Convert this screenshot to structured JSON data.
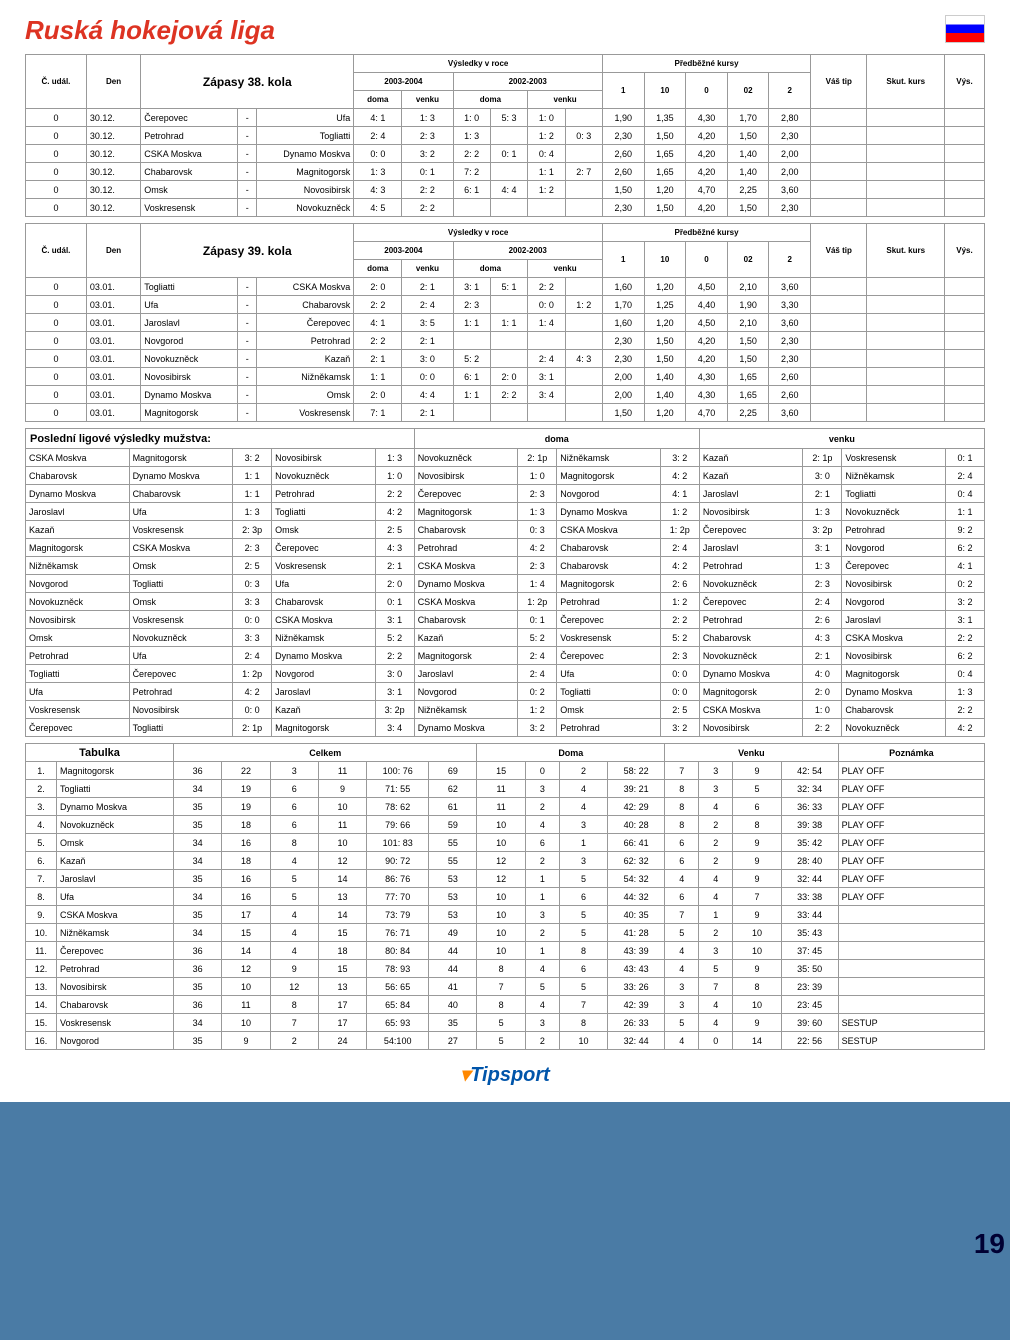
{
  "title": "Ruská hokejová liga",
  "page_number": "19",
  "round38": {
    "header": {
      "c": "Č. udál.",
      "den": "Den",
      "zapasy": "Zápasy 38. kola",
      "results": "Výsledky v roce",
      "s03": "2003-2004",
      "s02": "2002-2003",
      "doma": "doma",
      "venku": "venku",
      "odds": "Předběžné kursy",
      "o1": "1",
      "o10": "10",
      "o0": "0",
      "o02": "02",
      "o2": "2",
      "tip": "Váš tip",
      "skut": "Skut. kurs",
      "vys": "Výs."
    },
    "rows": [
      [
        "0",
        "30.12.",
        "Čerepovec",
        "-",
        "Ufa",
        "4: 1",
        "1: 3",
        "1: 0",
        "5: 3",
        "1: 0",
        "",
        "1,90",
        "1,35",
        "4,30",
        "1,70",
        "2,80"
      ],
      [
        "0",
        "30.12.",
        "Petrohrad",
        "-",
        "Togliatti",
        "2: 4",
        "2: 3",
        "1: 3",
        "",
        "1: 2",
        "0: 3",
        "2,30",
        "1,50",
        "4,20",
        "1,50",
        "2,30"
      ],
      [
        "0",
        "30.12.",
        "CSKA Moskva",
        "-",
        "Dynamo Moskva",
        "0: 0",
        "3: 2",
        "2: 2",
        "0: 1",
        "0: 4",
        "",
        "2,60",
        "1,65",
        "4,20",
        "1,40",
        "2,00"
      ],
      [
        "0",
        "30.12.",
        "Chabarovsk",
        "-",
        "Magnitogorsk",
        "1: 3",
        "0: 1",
        "7: 2",
        "",
        "1: 1",
        "2: 7",
        "2,60",
        "1,65",
        "4,20",
        "1,40",
        "2,00"
      ],
      [
        "0",
        "30.12.",
        "Omsk",
        "-",
        "Novosibirsk",
        "4: 3",
        "2: 2",
        "6: 1",
        "4: 4",
        "1: 2",
        "",
        "1,50",
        "1,20",
        "4,70",
        "2,25",
        "3,60"
      ],
      [
        "0",
        "30.12.",
        "Voskresensk",
        "-",
        "Novokuzněck",
        "4: 5",
        "2: 2",
        "",
        "",
        "",
        "",
        "2,30",
        "1,50",
        "4,20",
        "1,50",
        "2,30"
      ]
    ]
  },
  "round39": {
    "header": {
      "zapasy": "Zápasy 39. kola"
    },
    "rows": [
      [
        "0",
        "03.01.",
        "Togliatti",
        "-",
        "CSKA Moskva",
        "2: 0",
        "2: 1",
        "3: 1",
        "5: 1",
        "2: 2",
        "",
        "1,60",
        "1,20",
        "4,50",
        "2,10",
        "3,60"
      ],
      [
        "0",
        "03.01.",
        "Ufa",
        "-",
        "Chabarovsk",
        "2: 2",
        "2: 4",
        "2: 3",
        "",
        "0: 0",
        "1: 2",
        "1,70",
        "1,25",
        "4,40",
        "1,90",
        "3,30"
      ],
      [
        "0",
        "03.01.",
        "Jaroslavl",
        "-",
        "Čerepovec",
        "4: 1",
        "3: 5",
        "1: 1",
        "1: 1",
        "1: 4",
        "",
        "1,60",
        "1,20",
        "4,50",
        "2,10",
        "3,60"
      ],
      [
        "0",
        "03.01.",
        "Novgorod",
        "-",
        "Petrohrad",
        "2: 2",
        "2: 1",
        "",
        "",
        "",
        "",
        "2,30",
        "1,50",
        "4,20",
        "1,50",
        "2,30"
      ],
      [
        "0",
        "03.01.",
        "Novokuzněck",
        "-",
        "Kazaň",
        "2: 1",
        "3: 0",
        "5: 2",
        "",
        "2: 4",
        "4: 3",
        "2,30",
        "1,50",
        "4,20",
        "1,50",
        "2,30"
      ],
      [
        "0",
        "03.01.",
        "Novosibirsk",
        "-",
        "Nižněkamsk",
        "1: 1",
        "0: 0",
        "6: 1",
        "2: 0",
        "3: 1",
        "",
        "2,00",
        "1,40",
        "4,30",
        "1,65",
        "2,60"
      ],
      [
        "0",
        "03.01.",
        "Dynamo Moskva",
        "-",
        "Omsk",
        "2: 0",
        "4: 4",
        "1: 1",
        "2: 2",
        "3: 4",
        "",
        "2,00",
        "1,40",
        "4,30",
        "1,65",
        "2,60"
      ],
      [
        "0",
        "03.01.",
        "Magnitogorsk",
        "-",
        "Voskresensk",
        "7: 1",
        "2: 1",
        "",
        "",
        "",
        "",
        "1,50",
        "1,20",
        "4,70",
        "2,25",
        "3,60"
      ]
    ]
  },
  "last": {
    "title": "Poslední ligové výsledky mužstva:",
    "doma": "doma",
    "venku": "venku",
    "rows": [
      [
        "CSKA Moskva",
        "Magnitogorsk",
        "3: 2",
        "Novosibirsk",
        "1: 3",
        "Novokuzněck",
        "2: 1p",
        "Nižněkamsk",
        "3: 2",
        "Kazaň",
        "2: 1p",
        "Voskresensk",
        "0: 1"
      ],
      [
        "Chabarovsk",
        "Dynamo Moskva",
        "1: 1",
        "Novokuzněck",
        "1: 0",
        "Novosibirsk",
        "1: 0",
        "Magnitogorsk",
        "4: 2",
        "Kazaň",
        "3: 0",
        "Nižněkamsk",
        "2: 4"
      ],
      [
        "Dynamo Moskva",
        "Chabarovsk",
        "1: 1",
        "Petrohrad",
        "2: 2",
        "Čerepovec",
        "2: 3",
        "Novgorod",
        "4: 1",
        "Jaroslavl",
        "2: 1",
        "Togliatti",
        "0: 4"
      ],
      [
        "Jaroslavl",
        "Ufa",
        "1: 3",
        "Togliatti",
        "4: 2",
        "Magnitogorsk",
        "1: 3",
        "Dynamo Moskva",
        "1: 2",
        "Novosibirsk",
        "1: 3",
        "Novokuzněck",
        "1: 1"
      ],
      [
        "Kazaň",
        "Voskresensk",
        "2: 3p",
        "Omsk",
        "2: 5",
        "Chabarovsk",
        "0: 3",
        "CSKA Moskva",
        "1: 2p",
        "Čerepovec",
        "3: 2p",
        "Petrohrad",
        "9: 2"
      ],
      [
        "Magnitogorsk",
        "CSKA Moskva",
        "2: 3",
        "Čerepovec",
        "4: 3",
        "Petrohrad",
        "4: 2",
        "Chabarovsk",
        "2: 4",
        "Jaroslavl",
        "3: 1",
        "Novgorod",
        "6: 2"
      ],
      [
        "Nižněkamsk",
        "Omsk",
        "2: 5",
        "Voskresensk",
        "2: 1",
        "CSKA Moskva",
        "2: 3",
        "Chabarovsk",
        "4: 2",
        "Petrohrad",
        "1: 3",
        "Čerepovec",
        "4: 1"
      ],
      [
        "Novgorod",
        "Togliatti",
        "0: 3",
        "Ufa",
        "2: 0",
        "Dynamo Moskva",
        "1: 4",
        "Magnitogorsk",
        "2: 6",
        "Novokuzněck",
        "2: 3",
        "Novosibirsk",
        "0: 2"
      ],
      [
        "Novokuzněck",
        "Omsk",
        "3: 3",
        "Chabarovsk",
        "0: 1",
        "CSKA Moskva",
        "1: 2p",
        "Petrohrad",
        "1: 2",
        "Čerepovec",
        "2: 4",
        "Novgorod",
        "3: 2"
      ],
      [
        "Novosibirsk",
        "Voskresensk",
        "0: 0",
        "CSKA Moskva",
        "3: 1",
        "Chabarovsk",
        "0: 1",
        "Čerepovec",
        "2: 2",
        "Petrohrad",
        "2: 6",
        "Jaroslavl",
        "3: 1"
      ],
      [
        "Omsk",
        "Novokuzněck",
        "3: 3",
        "Nižněkamsk",
        "5: 2",
        "Kazaň",
        "5: 2",
        "Voskresensk",
        "5: 2",
        "Chabarovsk",
        "4: 3",
        "CSKA Moskva",
        "2: 2"
      ],
      [
        "Petrohrad",
        "Ufa",
        "2: 4",
        "Dynamo Moskva",
        "2: 2",
        "Magnitogorsk",
        "2: 4",
        "Čerepovec",
        "2: 3",
        "Novokuzněck",
        "2: 1",
        "Novosibirsk",
        "6: 2"
      ],
      [
        "Togliatti",
        "Čerepovec",
        "1: 2p",
        "Novgorod",
        "3: 0",
        "Jaroslavl",
        "2: 4",
        "Ufa",
        "0: 0",
        "Dynamo Moskva",
        "4: 0",
        "Magnitogorsk",
        "0: 4"
      ],
      [
        "Ufa",
        "Petrohrad",
        "4: 2",
        "Jaroslavl",
        "3: 1",
        "Novgorod",
        "0: 2",
        "Togliatti",
        "0: 0",
        "Magnitogorsk",
        "2: 0",
        "Dynamo Moskva",
        "1: 3"
      ],
      [
        "Voskresensk",
        "Novosibirsk",
        "0: 0",
        "Kazaň",
        "3: 2p",
        "Nižněkamsk",
        "1: 2",
        "Omsk",
        "2: 5",
        "CSKA Moskva",
        "1: 0",
        "Chabarovsk",
        "2: 2"
      ],
      [
        "Čerepovec",
        "Togliatti",
        "2: 1p",
        "Magnitogorsk",
        "3: 4",
        "Dynamo Moskva",
        "3: 2",
        "Petrohrad",
        "3: 2",
        "Novosibirsk",
        "2: 2",
        "Novokuzněck",
        "4: 2"
      ]
    ]
  },
  "tabulka": {
    "headers": {
      "tab": "Tabulka",
      "celkem": "Celkem",
      "doma": "Doma",
      "venku": "Venku",
      "pozn": "Poznámka"
    },
    "rows": [
      [
        "1.",
        "Magnitogorsk",
        "36",
        "22",
        "3",
        "11",
        "100: 76",
        "69",
        "15",
        "0",
        "2",
        "58: 22",
        "7",
        "3",
        "9",
        "42: 54",
        "PLAY OFF"
      ],
      [
        "2.",
        "Togliatti",
        "34",
        "19",
        "6",
        "9",
        "71: 55",
        "62",
        "11",
        "3",
        "4",
        "39: 21",
        "8",
        "3",
        "5",
        "32: 34",
        "PLAY OFF"
      ],
      [
        "3.",
        "Dynamo Moskva",
        "35",
        "19",
        "6",
        "10",
        "78: 62",
        "61",
        "11",
        "2",
        "4",
        "42: 29",
        "8",
        "4",
        "6",
        "36: 33",
        "PLAY OFF"
      ],
      [
        "4.",
        "Novokuzněck",
        "35",
        "18",
        "6",
        "11",
        "79: 66",
        "59",
        "10",
        "4",
        "3",
        "40: 28",
        "8",
        "2",
        "8",
        "39: 38",
        "PLAY OFF"
      ],
      [
        "5.",
        "Omsk",
        "34",
        "16",
        "8",
        "10",
        "101: 83",
        "55",
        "10",
        "6",
        "1",
        "66: 41",
        "6",
        "2",
        "9",
        "35: 42",
        "PLAY OFF"
      ],
      [
        "6.",
        "Kazaň",
        "34",
        "18",
        "4",
        "12",
        "90: 72",
        "55",
        "12",
        "2",
        "3",
        "62: 32",
        "6",
        "2",
        "9",
        "28: 40",
        "PLAY OFF"
      ],
      [
        "7.",
        "Jaroslavl",
        "35",
        "16",
        "5",
        "14",
        "86: 76",
        "53",
        "12",
        "1",
        "5",
        "54: 32",
        "4",
        "4",
        "9",
        "32: 44",
        "PLAY OFF"
      ],
      [
        "8.",
        "Ufa",
        "34",
        "16",
        "5",
        "13",
        "77: 70",
        "53",
        "10",
        "1",
        "6",
        "44: 32",
        "6",
        "4",
        "7",
        "33: 38",
        "PLAY OFF"
      ],
      [
        "9.",
        "CSKA Moskva",
        "35",
        "17",
        "4",
        "14",
        "73: 79",
        "53",
        "10",
        "3",
        "5",
        "40: 35",
        "7",
        "1",
        "9",
        "33: 44",
        ""
      ],
      [
        "10.",
        "Nižněkamsk",
        "34",
        "15",
        "4",
        "15",
        "76: 71",
        "49",
        "10",
        "2",
        "5",
        "41: 28",
        "5",
        "2",
        "10",
        "35: 43",
        ""
      ],
      [
        "11.",
        "Čerepovec",
        "36",
        "14",
        "4",
        "18",
        "80: 84",
        "44",
        "10",
        "1",
        "8",
        "43: 39",
        "4",
        "3",
        "10",
        "37: 45",
        ""
      ],
      [
        "12.",
        "Petrohrad",
        "36",
        "12",
        "9",
        "15",
        "78: 93",
        "44",
        "8",
        "4",
        "6",
        "43: 43",
        "4",
        "5",
        "9",
        "35: 50",
        ""
      ],
      [
        "13.",
        "Novosibirsk",
        "35",
        "10",
        "12",
        "13",
        "56: 65",
        "41",
        "7",
        "5",
        "5",
        "33: 26",
        "3",
        "7",
        "8",
        "23: 39",
        ""
      ],
      [
        "14.",
        "Chabarovsk",
        "36",
        "11",
        "8",
        "17",
        "65: 84",
        "40",
        "8",
        "4",
        "7",
        "42: 39",
        "3",
        "4",
        "10",
        "23: 45",
        ""
      ],
      [
        "15.",
        "Voskresensk",
        "34",
        "10",
        "7",
        "17",
        "65: 93",
        "35",
        "5",
        "3",
        "8",
        "26: 33",
        "5",
        "4",
        "9",
        "39: 60",
        "SESTUP"
      ],
      [
        "16.",
        "Novgorod",
        "35",
        "9",
        "2",
        "24",
        "54:100",
        "27",
        "5",
        "2",
        "10",
        "32: 44",
        "4",
        "0",
        "14",
        "22: 56",
        "SESTUP"
      ]
    ]
  }
}
